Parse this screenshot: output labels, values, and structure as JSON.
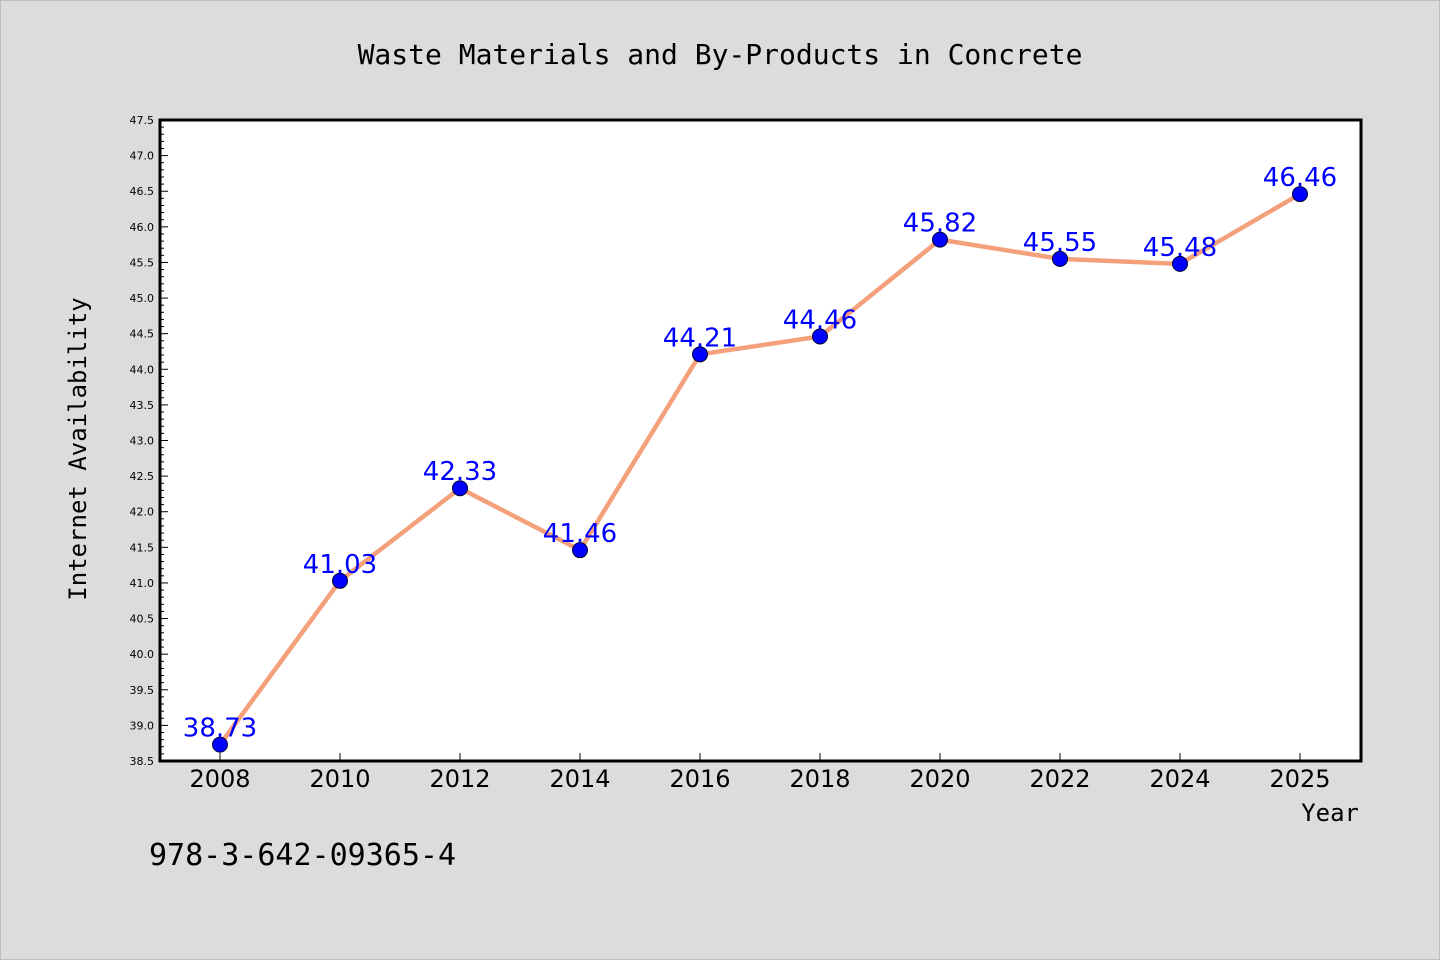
{
  "chart_data": {
    "type": "line",
    "title": "Waste Materials and By-Products in Concrete",
    "xlabel": "Year",
    "ylabel": "Internet Availability",
    "categories": [
      "2008",
      "2010",
      "2012",
      "2014",
      "2016",
      "2018",
      "2020",
      "2022",
      "2024",
      "2025"
    ],
    "series": [
      {
        "values": [
          38.73,
          41.03,
          42.33,
          41.46,
          44.21,
          44.46,
          45.82,
          45.55,
          45.48,
          46.46
        ]
      }
    ],
    "data_labels": [
      "38.73",
      "41.03",
      "42.33",
      "41.46",
      "44.21",
      "44.46",
      "45.82",
      "45.55",
      "45.48",
      "46.46"
    ],
    "ylim": [
      38.5,
      47.5
    ],
    "ytick_step": 0.5,
    "grid": false,
    "colors": {
      "line": "#f4a07a",
      "marker": "#0000ff",
      "data_label": "#0000ff"
    }
  },
  "footer": {
    "code": "978-3-642-09365-4"
  }
}
